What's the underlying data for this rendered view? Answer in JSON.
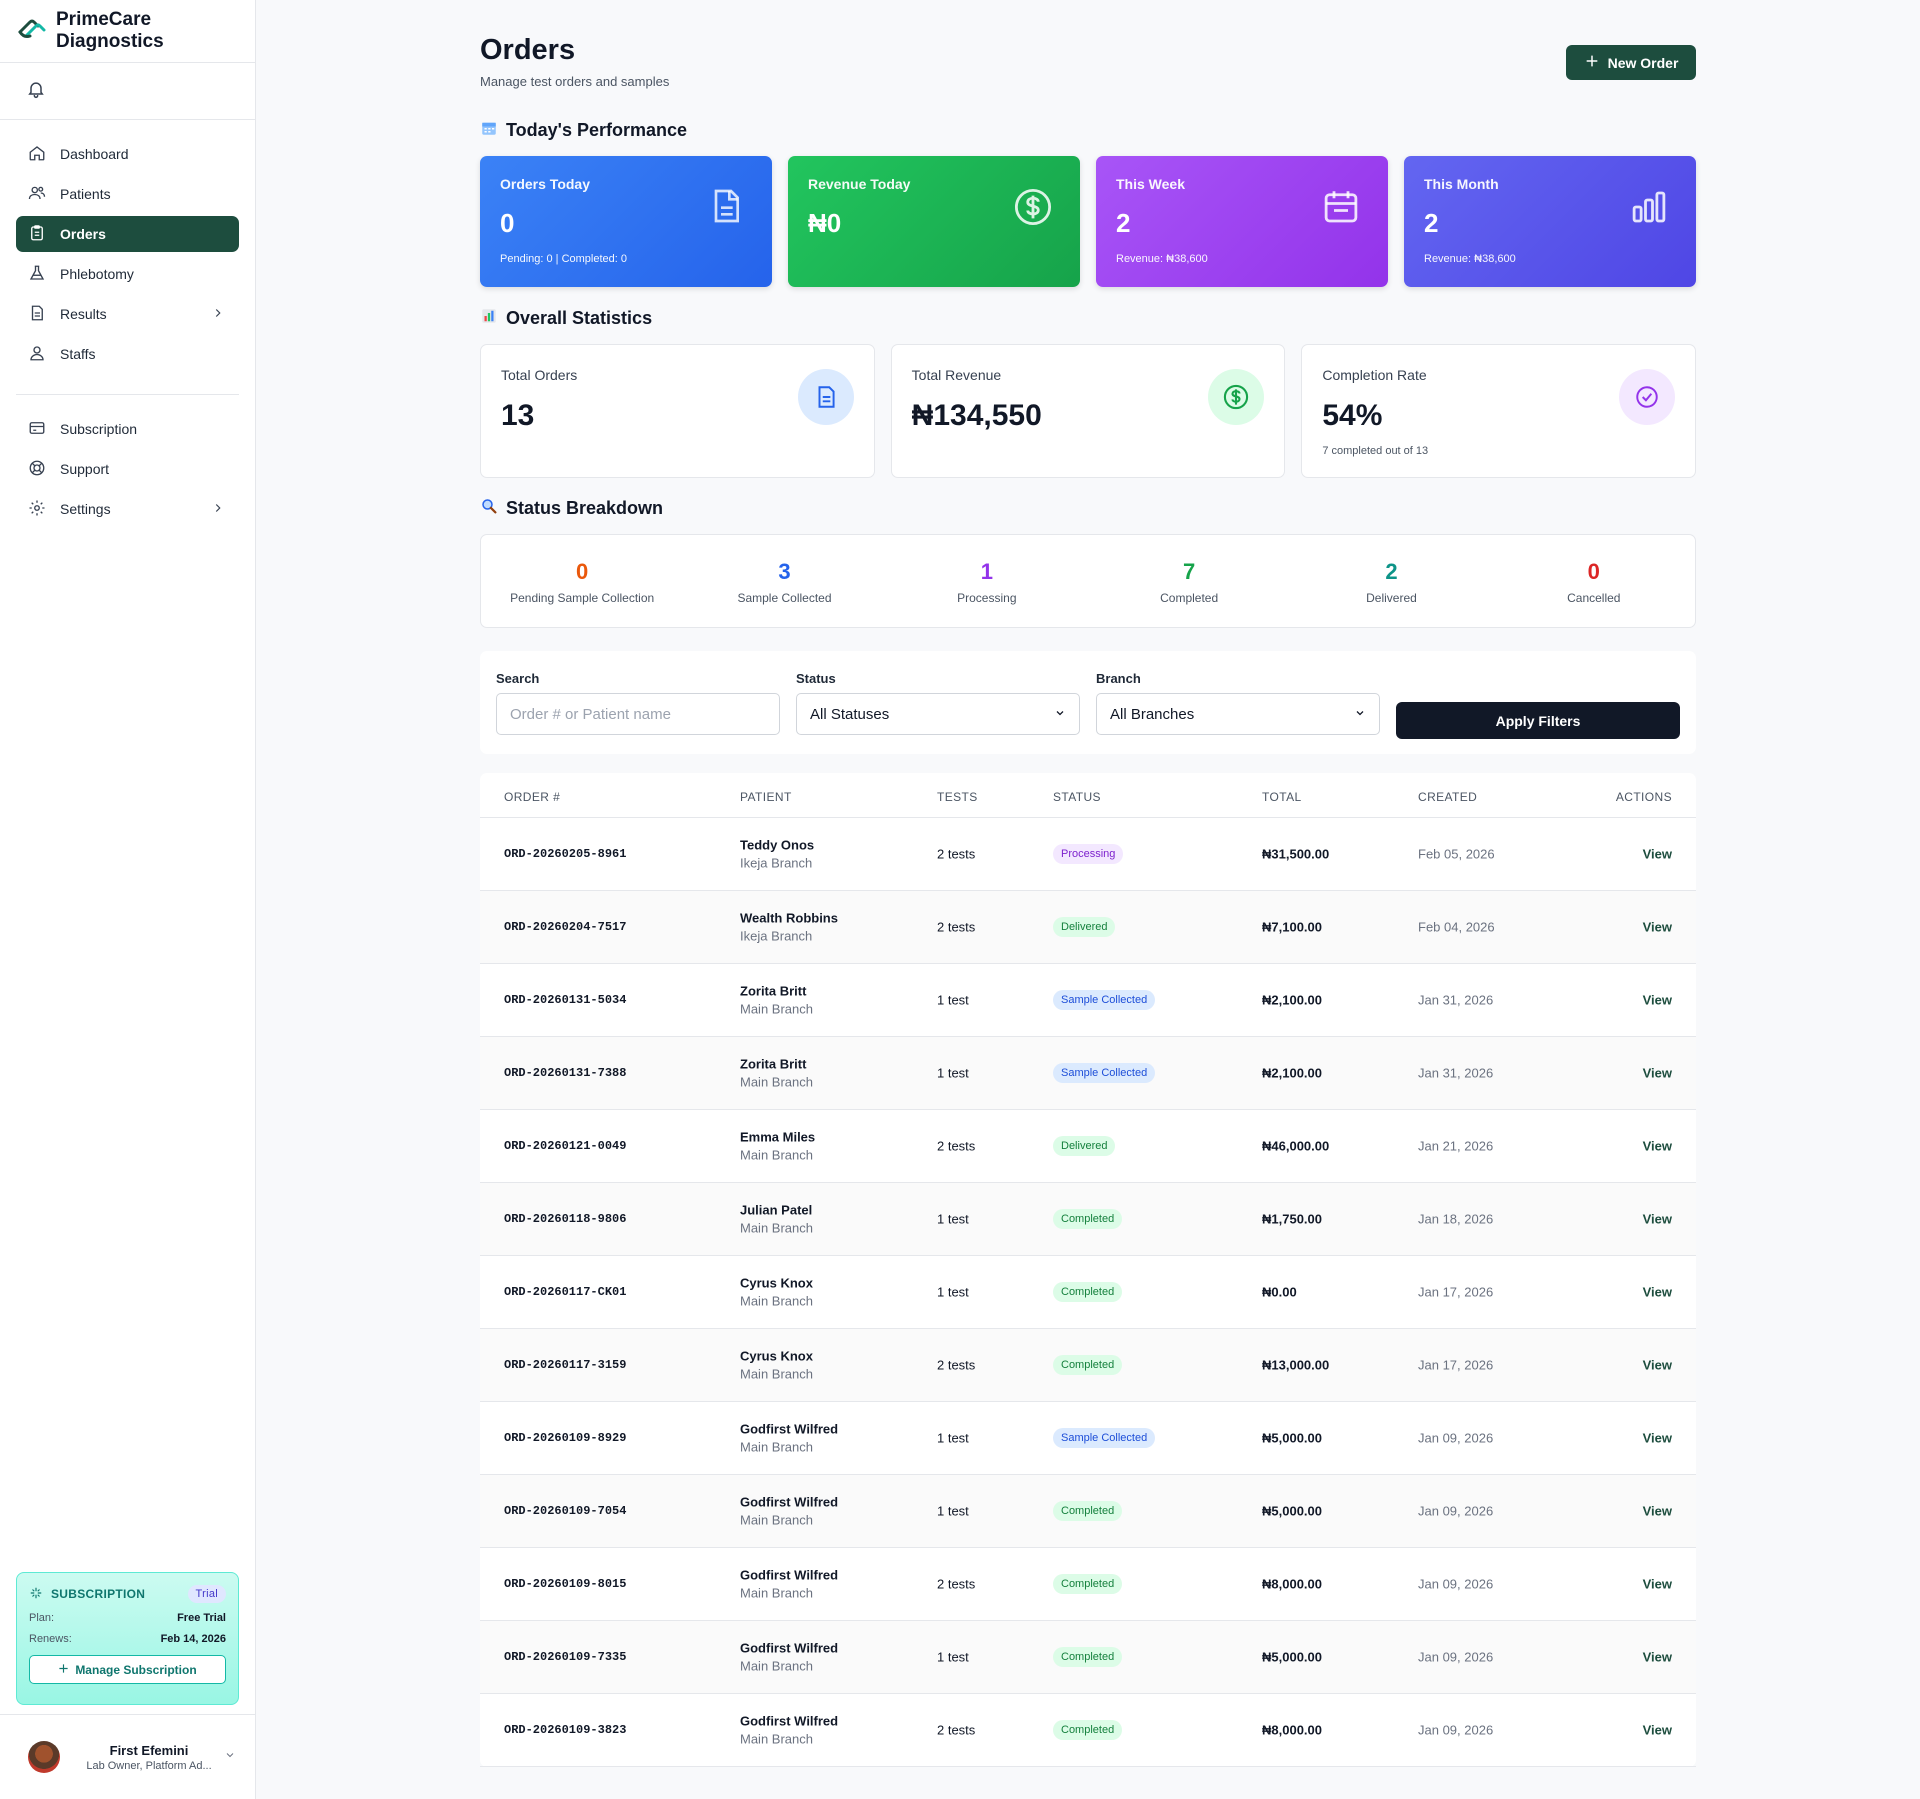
{
  "brand": {
    "name": "PrimeCare Diagnostics"
  },
  "sidebar": {
    "nav": [
      {
        "label": "Dashboard",
        "icon": "home-icon"
      },
      {
        "label": "Patients",
        "icon": "users-icon"
      },
      {
        "label": "Orders",
        "icon": "clipboard-icon",
        "active": true
      },
      {
        "label": "Phlebotomy",
        "icon": "flask-icon"
      },
      {
        "label": "Results",
        "icon": "document-icon",
        "chevron": true
      },
      {
        "label": "Staffs",
        "icon": "staff-icon"
      }
    ],
    "nav2": [
      {
        "label": "Subscription",
        "icon": "card-icon"
      },
      {
        "label": "Support",
        "icon": "lifebuoy-icon"
      },
      {
        "label": "Settings",
        "icon": "gear-icon",
        "chevron": true
      }
    ],
    "subscription": {
      "title": "SUBSCRIPTION",
      "badge": "Trial",
      "plan_label": "Plan:",
      "plan_value": "Free Trial",
      "renews_label": "Renews:",
      "renews_value": "Feb 14, 2026",
      "manage_label": "Manage Subscription"
    },
    "user": {
      "name": "First Efemini",
      "role": "Lab Owner, Platform Ad..."
    }
  },
  "header": {
    "title": "Orders",
    "subtitle": "Manage test orders and samples",
    "new_order_label": "New Order"
  },
  "performance": {
    "title": "Today's Performance",
    "cards": [
      {
        "label": "Orders Today",
        "value": "0",
        "foot": "Pending: 0 | Completed: 0",
        "color": "#3b82f6"
      },
      {
        "label": "Revenue Today",
        "value": "₦0",
        "foot": "",
        "color": "#22c55e"
      },
      {
        "label": "This Week",
        "value": "2",
        "foot": "Revenue: ₦38,600",
        "color": "#a855f7"
      },
      {
        "label": "This Month",
        "value": "2",
        "foot": "Revenue: ₦38,600",
        "color": "#6366f1"
      }
    ]
  },
  "overall": {
    "title": "Overall Statistics",
    "cards": [
      {
        "label": "Total Orders",
        "value": "13",
        "foot": ""
      },
      {
        "label": "Total Revenue",
        "value": "₦134,550",
        "foot": ""
      },
      {
        "label": "Completion Rate",
        "value": "54%",
        "foot": "7 completed out of 13"
      }
    ]
  },
  "breakdown": {
    "title": "Status Breakdown",
    "items": [
      {
        "value": "0",
        "label": "Pending Sample Collection",
        "color": "#ea580c"
      },
      {
        "value": "3",
        "label": "Sample Collected",
        "color": "#2563eb"
      },
      {
        "value": "1",
        "label": "Processing",
        "color": "#9333ea"
      },
      {
        "value": "7",
        "label": "Completed",
        "color": "#16a34a"
      },
      {
        "value": "2",
        "label": "Delivered",
        "color": "#0d9488"
      },
      {
        "value": "0",
        "label": "Cancelled",
        "color": "#dc2626"
      }
    ]
  },
  "filters": {
    "search_label": "Search",
    "search_placeholder": "Order # or Patient name",
    "status_label": "Status",
    "status_value": "All Statuses",
    "branch_label": "Branch",
    "branch_value": "All Branches",
    "apply_label": "Apply Filters"
  },
  "table": {
    "columns": [
      "ORDER #",
      "PATIENT",
      "TESTS",
      "STATUS",
      "TOTAL",
      "CREATED",
      "ACTIONS"
    ],
    "rows": [
      {
        "order": "ORD-20260205-8961",
        "patient": "Teddy Onos",
        "branch": "Ikeja Branch",
        "tests": "2 tests",
        "status": "Processing",
        "total": "₦31,500.00",
        "created": "Feb 05, 2026",
        "action": "View"
      },
      {
        "order": "ORD-20260204-7517",
        "patient": "Wealth Robbins",
        "branch": "Ikeja Branch",
        "tests": "2 tests",
        "status": "Delivered",
        "total": "₦7,100.00",
        "created": "Feb 04, 2026",
        "action": "View"
      },
      {
        "order": "ORD-20260131-5034",
        "patient": "Zorita Britt",
        "branch": "Main Branch",
        "tests": "1 test",
        "status": "Sample Collected",
        "total": "₦2,100.00",
        "created": "Jan 31, 2026",
        "action": "View"
      },
      {
        "order": "ORD-20260131-7388",
        "patient": "Zorita Britt",
        "branch": "Main Branch",
        "tests": "1 test",
        "status": "Sample Collected",
        "total": "₦2,100.00",
        "created": "Jan 31, 2026",
        "action": "View"
      },
      {
        "order": "ORD-20260121-0049",
        "patient": "Emma Miles",
        "branch": "Main Branch",
        "tests": "2 tests",
        "status": "Delivered",
        "total": "₦46,000.00",
        "created": "Jan 21, 2026",
        "action": "View"
      },
      {
        "order": "ORD-20260118-9806",
        "patient": "Julian Patel",
        "branch": "Main Branch",
        "tests": "1 test",
        "status": "Completed",
        "total": "₦1,750.00",
        "created": "Jan 18, 2026",
        "action": "View"
      },
      {
        "order": "ORD-20260117-CK01",
        "patient": "Cyrus Knox",
        "branch": "Main Branch",
        "tests": "1 test",
        "status": "Completed",
        "total": "₦0.00",
        "created": "Jan 17, 2026",
        "action": "View"
      },
      {
        "order": "ORD-20260117-3159",
        "patient": "Cyrus Knox",
        "branch": "Main Branch",
        "tests": "2 tests",
        "status": "Completed",
        "total": "₦13,000.00",
        "created": "Jan 17, 2026",
        "action": "View"
      },
      {
        "order": "ORD-20260109-8929",
        "patient": "Godfirst Wilfred",
        "branch": "Main Branch",
        "tests": "1 test",
        "status": "Sample Collected",
        "total": "₦5,000.00",
        "created": "Jan 09, 2026",
        "action": "View"
      },
      {
        "order": "ORD-20260109-7054",
        "patient": "Godfirst Wilfred",
        "branch": "Main Branch",
        "tests": "1 test",
        "status": "Completed",
        "total": "₦5,000.00",
        "created": "Jan 09, 2026",
        "action": "View"
      },
      {
        "order": "ORD-20260109-8015",
        "patient": "Godfirst Wilfred",
        "branch": "Main Branch",
        "tests": "2 tests",
        "status": "Completed",
        "total": "₦8,000.00",
        "created": "Jan 09, 2026",
        "action": "View"
      },
      {
        "order": "ORD-20260109-7335",
        "patient": "Godfirst Wilfred",
        "branch": "Main Branch",
        "tests": "1 test",
        "status": "Completed",
        "total": "₦5,000.00",
        "created": "Jan 09, 2026",
        "action": "View"
      },
      {
        "order": "ORD-20260109-3823",
        "patient": "Godfirst Wilfred",
        "branch": "Main Branch",
        "tests": "2 tests",
        "status": "Completed",
        "total": "₦8,000.00",
        "created": "Jan 09, 2026",
        "action": "View"
      }
    ]
  },
  "colors": {
    "brand": "#1d4d3e",
    "status": {
      "Processing": {
        "bg": "#f3e8ff",
        "fg": "#7e22ce"
      },
      "Delivered": {
        "bg": "#dcfce7",
        "fg": "#15803d"
      },
      "Sample Collected": {
        "bg": "#dbeafe",
        "fg": "#1d4ed8"
      },
      "Completed": {
        "bg": "#dcfce7",
        "fg": "#15803d"
      }
    }
  }
}
